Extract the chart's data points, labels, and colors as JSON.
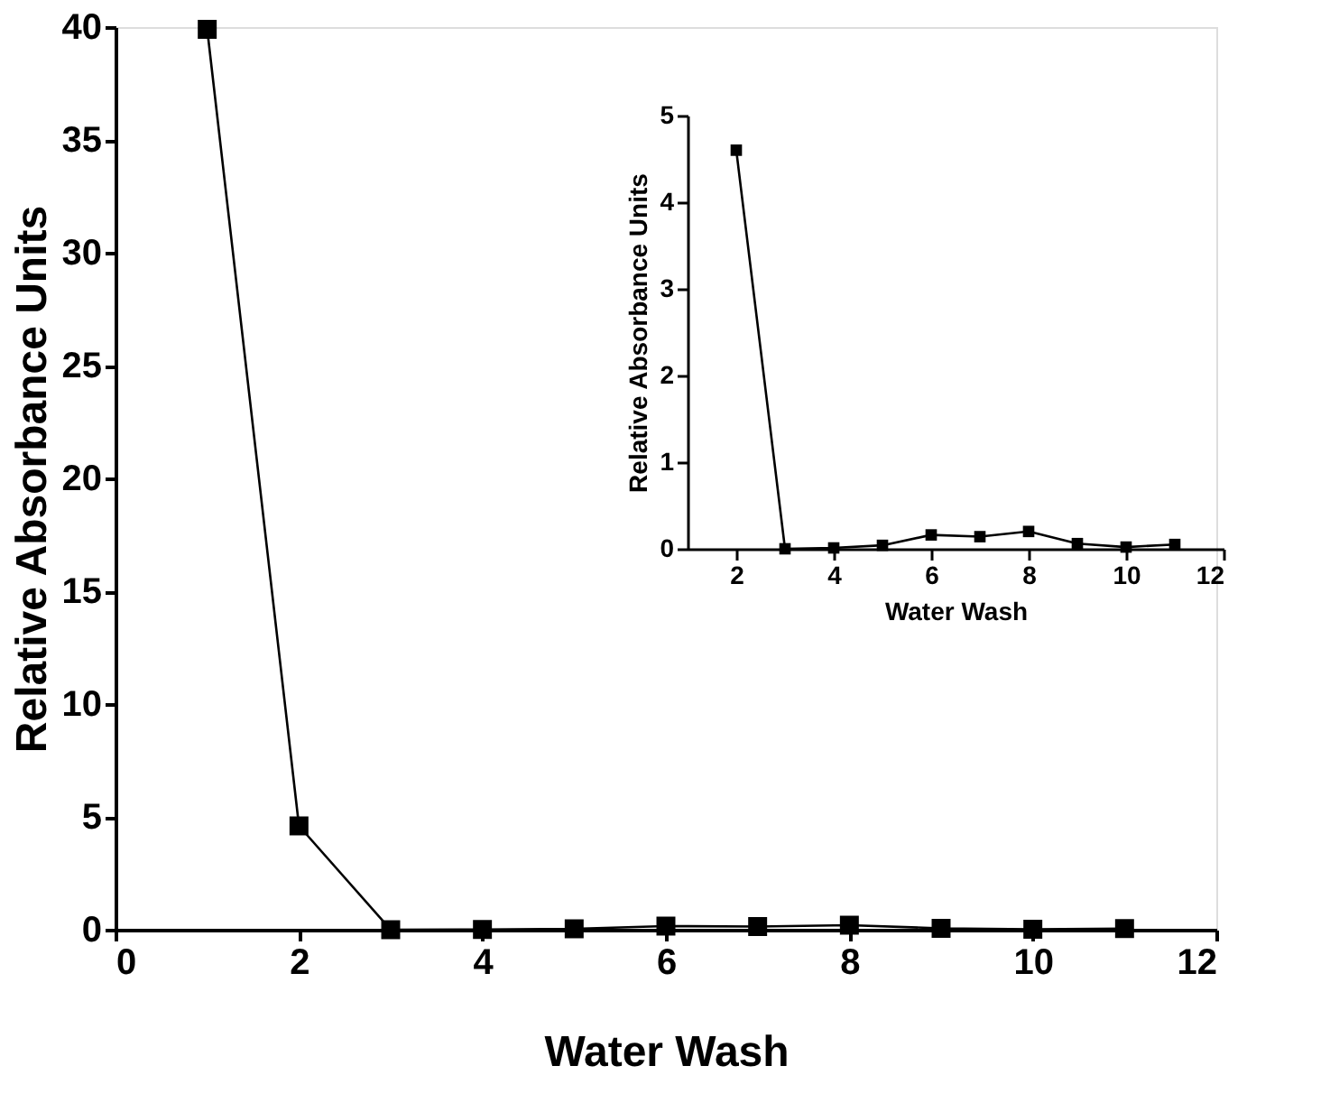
{
  "chart_data": [
    {
      "type": "line",
      "xlabel": "Water Wash",
      "ylabel": "Relative Absorbance Units",
      "x": [
        1,
        2,
        3,
        4,
        5,
        6,
        7,
        8,
        9,
        10,
        11
      ],
      "series": [
        {
          "color": "#000000",
          "values": [
            39.9,
            4.6,
            0,
            0.01,
            0.04,
            0.16,
            0.14,
            0.2,
            0.06,
            0.02,
            0.05
          ]
        }
      ],
      "xlim": [
        0,
        12
      ],
      "xticks": [
        0,
        2,
        4,
        6,
        8,
        10,
        12
      ],
      "ylim": [
        0,
        40
      ],
      "yticks": [
        0,
        5,
        10,
        15,
        20,
        25,
        30,
        35,
        40
      ],
      "grid": false,
      "marker": "square",
      "line_style": "solid"
    },
    {
      "type": "line",
      "xlabel": "Water Wash",
      "ylabel": "Relative Absorbance Units",
      "x": [
        2,
        3,
        4,
        5,
        6,
        7,
        8,
        9,
        10,
        11
      ],
      "series": [
        {
          "color": "#000000",
          "values": [
            4.6,
            0,
            0.01,
            0.04,
            0.16,
            0.14,
            0.2,
            0.06,
            0.02,
            0.05
          ]
        }
      ],
      "xlim": [
        1,
        12
      ],
      "xticks": [
        2,
        4,
        6,
        8,
        10,
        12
      ],
      "ylim": [
        0,
        5
      ],
      "yticks": [
        0,
        1,
        2,
        3,
        4,
        5
      ],
      "grid": false,
      "marker": "square",
      "line_style": "solid"
    }
  ]
}
